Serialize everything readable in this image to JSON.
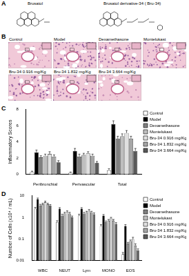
{
  "panel_labels": [
    "A",
    "B",
    "C",
    "D"
  ],
  "structures": {
    "left": "Brusatol",
    "right": "Brusatol derivative-34 ( Bru-34)"
  },
  "histology": [
    "Control",
    "Model",
    "Dexamethasone",
    "Montelukast",
    "Bru-34  0.916 mg/Kg",
    "Bru-34  1.832 mg/Kg",
    "Bru-34  3.664 mg/Kg"
  ],
  "chart_data": [
    {
      "type": "bar",
      "y_label": "Inflammatory Scores",
      "categories": [
        "Peribronchial",
        "Perivascular",
        "Total"
      ],
      "series": [
        {
          "name": "Control",
          "color": "#ffffff",
          "values": [
            0.3,
            0.2,
            0.5
          ],
          "errors": [
            0.1,
            0.1,
            0.2
          ]
        },
        {
          "name": "Model",
          "color": "#000000",
          "values": [
            2.7,
            2.9,
            6.2
          ],
          "errors": [
            0.3,
            0.3,
            0.4
          ]
        },
        {
          "name": "Dexamethasone",
          "color": "#808080",
          "values": [
            2.1,
            2.2,
            4.4
          ],
          "errors": [
            0.2,
            0.3,
            0.3
          ]
        },
        {
          "name": "Montelukast",
          "color": "#bfbfbf",
          "values": [
            2.3,
            2.4,
            4.7
          ],
          "errors": [
            0.2,
            0.2,
            0.3
          ]
        },
        {
          "name": "Bru-34 0.916 mg/Kg",
          "color": "#e0e0e0",
          "values": [
            2.5,
            2.6,
            5.1
          ],
          "errors": [
            0.3,
            0.2,
            0.3
          ]
        },
        {
          "name": "Bru-34 1.832 mg/Kg",
          "color": "#a6a6a6",
          "values": [
            2.2,
            2.3,
            4.4
          ],
          "errors": [
            0.2,
            0.2,
            0.3
          ]
        },
        {
          "name": "Bru-34 3.664 mg/Kg",
          "color": "#595959",
          "values": [
            1.5,
            1.4,
            2.9
          ],
          "errors": [
            0.2,
            0.2,
            0.3
          ]
        }
      ],
      "ylim": [
        0,
        8
      ],
      "yticks": [
        0,
        2,
        4,
        6,
        8
      ],
      "grid": false,
      "legend": "right"
    },
    {
      "type": "bar",
      "log": "y",
      "y_label": "Number of Cells (x10⁴ / mL)",
      "categories": [
        "WBC",
        "NEUT",
        "Lym",
        "MONO",
        "EOS"
      ],
      "series": [
        {
          "name": "Control",
          "color": "#ffffff",
          "values": [
            2.5,
            0.6,
            1.2,
            0.4,
            0.02
          ],
          "errors": [
            0.4,
            0.1,
            0.2,
            0.06,
            0.004
          ]
        },
        {
          "name": "Model",
          "color": "#000000",
          "values": [
            7,
            2.5,
            2.5,
            1.2,
            0.4
          ],
          "errors": [
            0.8,
            0.3,
            0.3,
            0.15,
            0.06
          ]
        },
        {
          "name": "Dexamethasone",
          "color": "#808080",
          "values": [
            3.5,
            1.2,
            1.5,
            0.6,
            0.06
          ],
          "errors": [
            0.5,
            0.2,
            0.2,
            0.08,
            0.01
          ]
        },
        {
          "name": "Montelukast",
          "color": "#bfbfbf",
          "values": [
            4,
            1.5,
            1.7,
            0.7,
            0.08
          ],
          "errors": [
            0.5,
            0.2,
            0.2,
            0.1,
            0.01
          ]
        },
        {
          "name": "Bru-34 0.916 mg/Kg",
          "color": "#e0e0e0",
          "values": [
            5,
            1.8,
            2,
            0.9,
            0.1
          ],
          "errors": [
            0.6,
            0.2,
            0.3,
            0.1,
            0.02
          ]
        },
        {
          "name": "Bru-34 1.832 mg/Kg",
          "color": "#a6a6a6",
          "values": [
            4,
            1.5,
            1.7,
            0.7,
            0.05
          ],
          "errors": [
            0.5,
            0.2,
            0.2,
            0.1,
            0.01
          ]
        },
        {
          "name": "Bru-34 3.664 mg/Kg",
          "color": "#595959",
          "values": [
            3.5,
            1,
            1.4,
            0.5,
            0.03
          ],
          "errors": [
            0.4,
            0.15,
            0.2,
            0.07,
            0.005
          ]
        }
      ],
      "ylim": [
        0.01,
        10
      ],
      "yticks": [
        0.01,
        0.1,
        1,
        10
      ],
      "grid": false,
      "legend": "right"
    }
  ]
}
